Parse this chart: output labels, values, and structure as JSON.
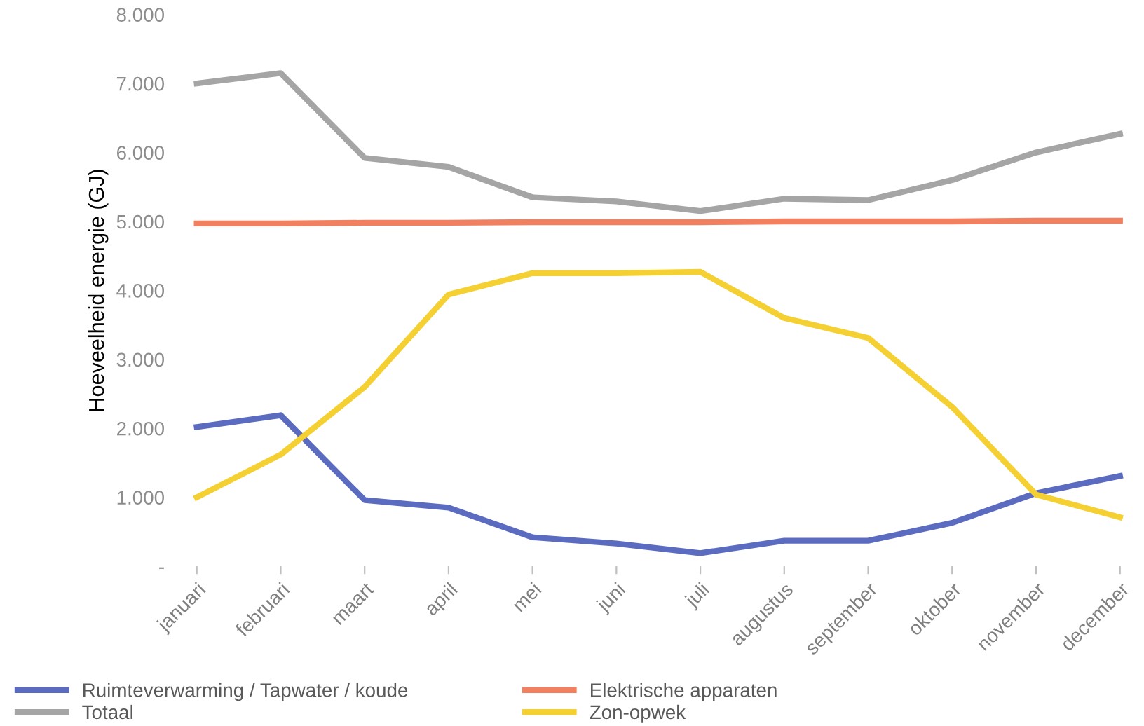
{
  "chart_data": {
    "type": "line",
    "ylabel": "Hoeveelheid energie (GJ)",
    "categories": [
      "januari",
      "februari",
      "maart",
      "april",
      "mei",
      "juni",
      "juli",
      "augustus",
      "september",
      "oktober",
      "november",
      "december"
    ],
    "series": [
      {
        "name": "Ruimteverwarming / Tapwater / koude",
        "color": "#5b6bc0",
        "values": [
          2020,
          2190,
          960,
          850,
          420,
          330,
          190,
          370,
          370,
          630,
          1060,
          1310
        ]
      },
      {
        "name": "Elektrische apparaten",
        "color": "#f08060",
        "values": [
          4970,
          4970,
          4980,
          4980,
          4990,
          4990,
          4990,
          5000,
          5000,
          5000,
          5010,
          5010
        ]
      },
      {
        "name": "Totaal",
        "color": "#a5a5a5",
        "values": [
          7000,
          7150,
          5920,
          5790,
          5350,
          5290,
          5150,
          5330,
          5310,
          5600,
          6000,
          6270
        ]
      },
      {
        "name": "Zon-opwek",
        "color": "#f5d033",
        "values": [
          1000,
          1620,
          2600,
          3940,
          4250,
          4250,
          4270,
          3600,
          3310,
          2310,
          1040,
          710
        ]
      }
    ],
    "ylim": [
      0,
      8000
    ],
    "yticks": [
      {
        "value": 0,
        "label": "-"
      },
      {
        "value": 1000,
        "label": "1.000"
      },
      {
        "value": 2000,
        "label": "2.000"
      },
      {
        "value": 3000,
        "label": "3.000"
      },
      {
        "value": 4000,
        "label": "4.000"
      },
      {
        "value": 5000,
        "label": "5.000"
      },
      {
        "value": 6000,
        "label": "6.000"
      },
      {
        "value": 7000,
        "label": "7.000"
      },
      {
        "value": 8000,
        "label": "8.000"
      }
    ],
    "grid": false,
    "legend": "bottom",
    "marker": "none",
    "line_style": "solid"
  }
}
